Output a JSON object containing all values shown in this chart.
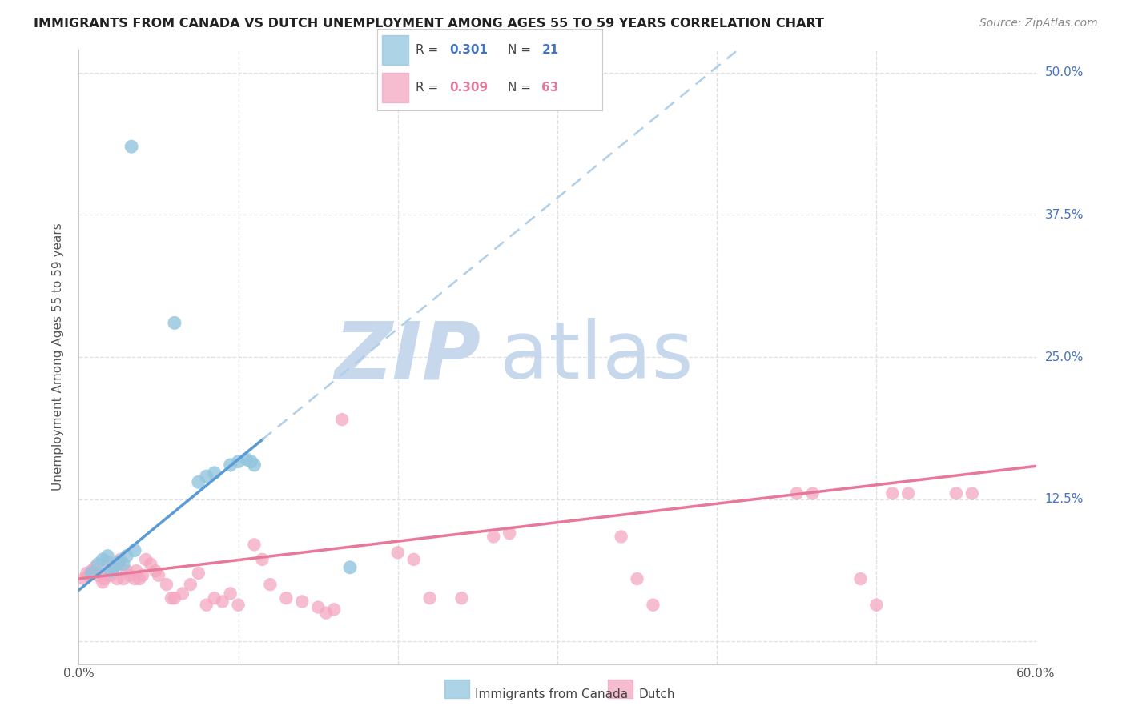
{
  "title": "IMMIGRANTS FROM CANADA VS DUTCH UNEMPLOYMENT AMONG AGES 55 TO 59 YEARS CORRELATION CHART",
  "source": "Source: ZipAtlas.com",
  "ylabel": "Unemployment Among Ages 55 to 59 years",
  "xlabel_canada": "Immigrants from Canada",
  "xlabel_dutch": "Dutch",
  "xlim": [
    0.0,
    0.6
  ],
  "ylim": [
    -0.02,
    0.52
  ],
  "xticks": [
    0.0,
    0.1,
    0.2,
    0.3,
    0.4,
    0.5,
    0.6
  ],
  "ytick_vals": [
    0.0,
    0.125,
    0.25,
    0.375,
    0.5
  ],
  "ytick_labels": [
    "",
    "12.5%",
    "25.0%",
    "37.5%",
    "50.0%"
  ],
  "xtick_labels": [
    "0.0%",
    "",
    "",
    "",
    "",
    "",
    "60.0%"
  ],
  "r_canada": 0.301,
  "n_canada": 21,
  "r_dutch": 0.309,
  "n_dutch": 63,
  "canada_color": "#92c5de",
  "dutch_color": "#f4a6c0",
  "canada_line_color": "#5b9bd5",
  "dutch_line_color": "#e8789a",
  "dashed_line_color": "#b0cfe8",
  "watermark_zip_color": "#c8d8ec",
  "watermark_atlas_color": "#c8d8ec",
  "background_color": "#ffffff",
  "grid_color": "#e0e0e0",
  "canada_points_x": [
    0.033,
    0.06,
    0.008,
    0.012,
    0.015,
    0.018,
    0.02,
    0.022,
    0.025,
    0.028,
    0.03,
    0.035,
    0.095,
    0.1,
    0.105,
    0.108,
    0.11,
    0.075,
    0.08,
    0.085,
    0.17
  ],
  "canada_points_y": [
    0.435,
    0.28,
    0.06,
    0.068,
    0.072,
    0.075,
    0.062,
    0.065,
    0.07,
    0.068,
    0.075,
    0.08,
    0.155,
    0.158,
    0.16,
    0.158,
    0.155,
    0.14,
    0.145,
    0.148,
    0.065
  ],
  "dutch_points_x": [
    0.003,
    0.005,
    0.006,
    0.008,
    0.01,
    0.012,
    0.015,
    0.016,
    0.018,
    0.02,
    0.021,
    0.022,
    0.024,
    0.025,
    0.026,
    0.028,
    0.03,
    0.032,
    0.035,
    0.036,
    0.038,
    0.04,
    0.042,
    0.045,
    0.048,
    0.05,
    0.055,
    0.058,
    0.06,
    0.065,
    0.07,
    0.075,
    0.08,
    0.085,
    0.09,
    0.095,
    0.1,
    0.11,
    0.115,
    0.12,
    0.13,
    0.14,
    0.15,
    0.155,
    0.16,
    0.165,
    0.2,
    0.21,
    0.22,
    0.24,
    0.26,
    0.27,
    0.34,
    0.35,
    0.36,
    0.45,
    0.46,
    0.49,
    0.5,
    0.51,
    0.52,
    0.55,
    0.56
  ],
  "dutch_points_y": [
    0.055,
    0.06,
    0.058,
    0.062,
    0.065,
    0.058,
    0.052,
    0.055,
    0.07,
    0.058,
    0.062,
    0.065,
    0.055,
    0.068,
    0.072,
    0.055,
    0.062,
    0.058,
    0.055,
    0.062,
    0.055,
    0.058,
    0.072,
    0.068,
    0.062,
    0.058,
    0.05,
    0.038,
    0.038,
    0.042,
    0.05,
    0.06,
    0.032,
    0.038,
    0.035,
    0.042,
    0.032,
    0.085,
    0.072,
    0.05,
    0.038,
    0.035,
    0.03,
    0.025,
    0.028,
    0.195,
    0.078,
    0.072,
    0.038,
    0.038,
    0.092,
    0.095,
    0.092,
    0.055,
    0.032,
    0.13,
    0.13,
    0.055,
    0.032,
    0.13,
    0.13,
    0.13,
    0.13
  ],
  "canada_line_x_solid_end": 0.115,
  "canada_line_slope": 1.15,
  "canada_line_intercept": 0.045,
  "dutch_line_slope": 0.165,
  "dutch_line_intercept": 0.055
}
